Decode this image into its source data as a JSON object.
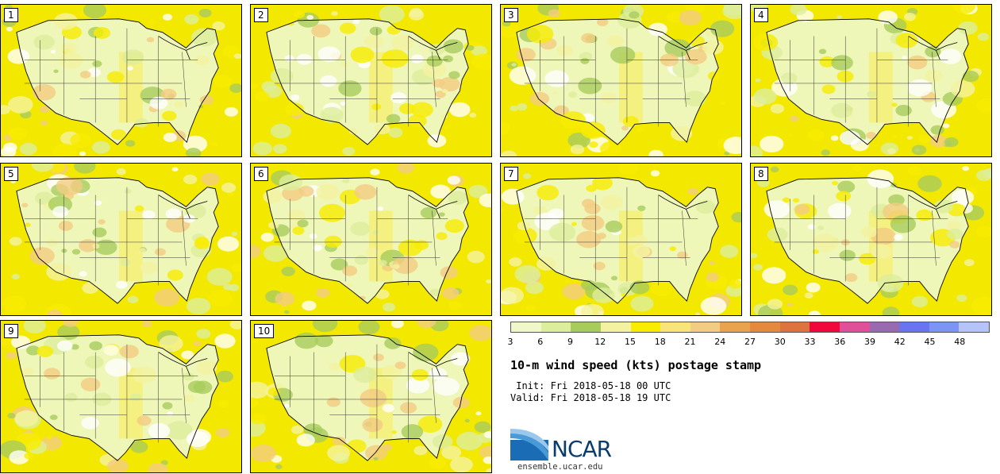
{
  "panels": [
    {
      "label": "1"
    },
    {
      "label": "2"
    },
    {
      "label": "3"
    },
    {
      "label": "4"
    },
    {
      "label": "5"
    },
    {
      "label": "6"
    },
    {
      "label": "7"
    },
    {
      "label": "8"
    },
    {
      "label": "9"
    },
    {
      "label": "10"
    }
  ],
  "colorbar": {
    "colors": [
      "#f0f7c8",
      "#dcee9c",
      "#a8cc5c",
      "#f4f2a0",
      "#f8ec00",
      "#f8e478",
      "#f2cc82",
      "#e9a24e",
      "#e5893e",
      "#dd7440",
      "#f0083c",
      "#e0509a",
      "#9a6ab0",
      "#6874f0",
      "#7c94f4",
      "#b4c4f8"
    ],
    "ticks": [
      "3",
      "6",
      "9",
      "12",
      "15",
      "18",
      "21",
      "24",
      "27",
      "30",
      "33",
      "36",
      "39",
      "42",
      "45",
      "48"
    ]
  },
  "title": "10-m wind speed (kts) postage stamp",
  "init": " Init: Fri 2018-05-18 00 UTC",
  "valid": "Valid: Fri 2018-05-18 19 UTC",
  "logo": {
    "text": "NCAR",
    "url_text": "ensemble.ucar.edu"
  }
}
